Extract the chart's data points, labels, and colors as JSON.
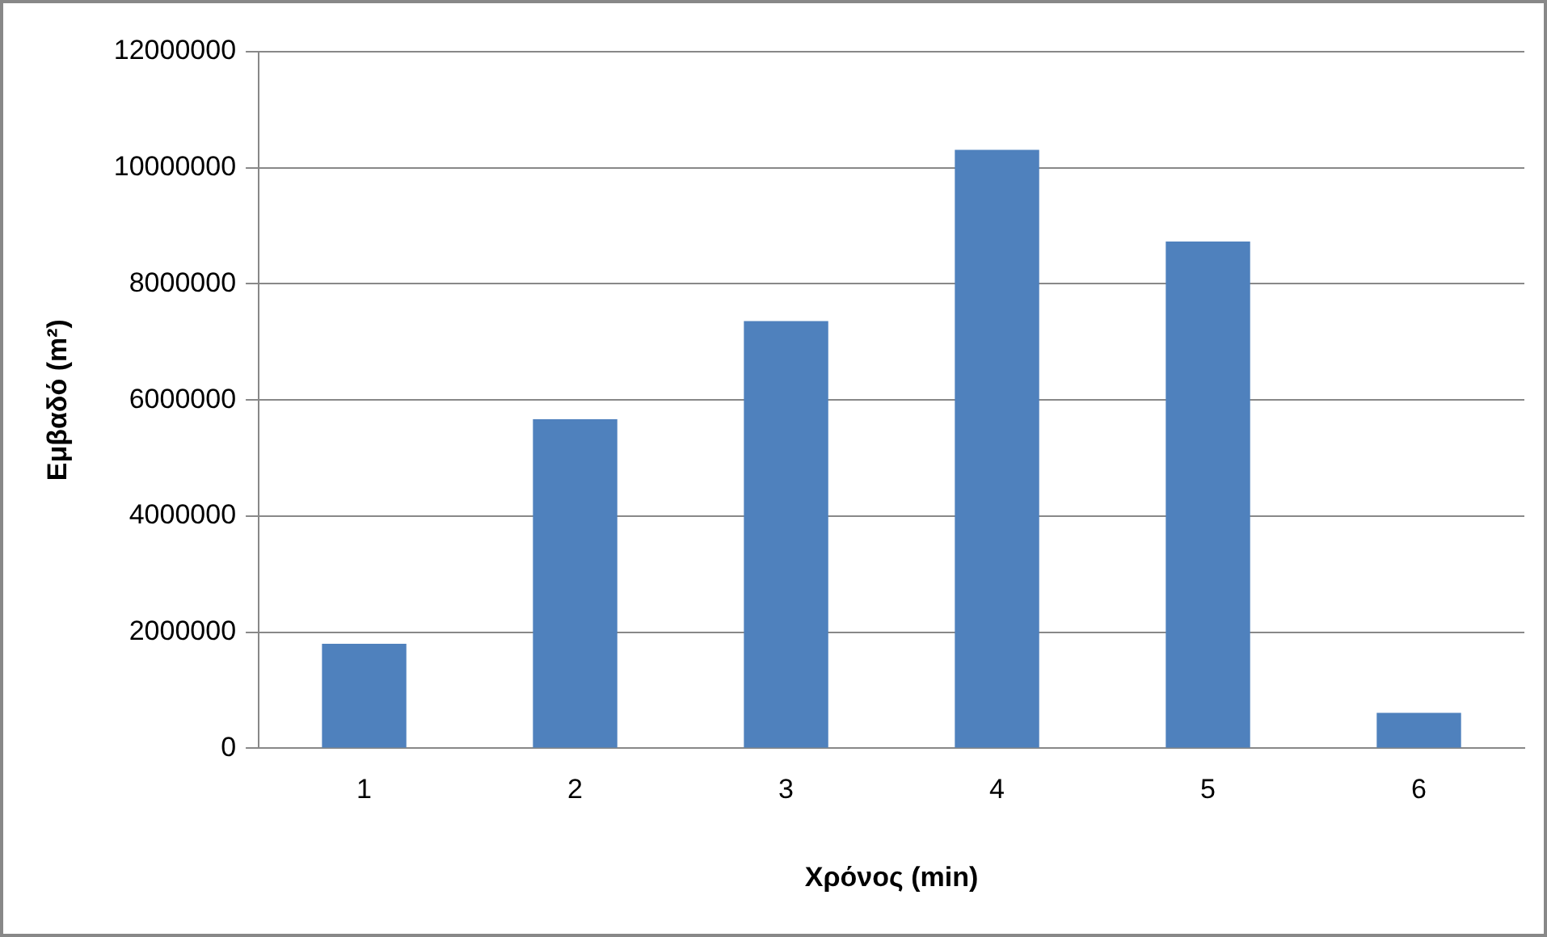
{
  "chart_data": {
    "type": "bar",
    "xlabel": "Χρόνος (min)",
    "ylabel": "Εμβαδό (m²)",
    "categories": [
      "1",
      "2",
      "3",
      "4",
      "5",
      "6"
    ],
    "values": [
      1800000,
      5670000,
      7360000,
      10310000,
      8730000,
      610000
    ],
    "color": "#4f81bd",
    "ylim": [
      0,
      12000000
    ],
    "yticks": [
      0,
      2000000,
      4000000,
      6000000,
      8000000,
      10000000,
      12000000
    ],
    "grid": "y",
    "legend": false
  }
}
